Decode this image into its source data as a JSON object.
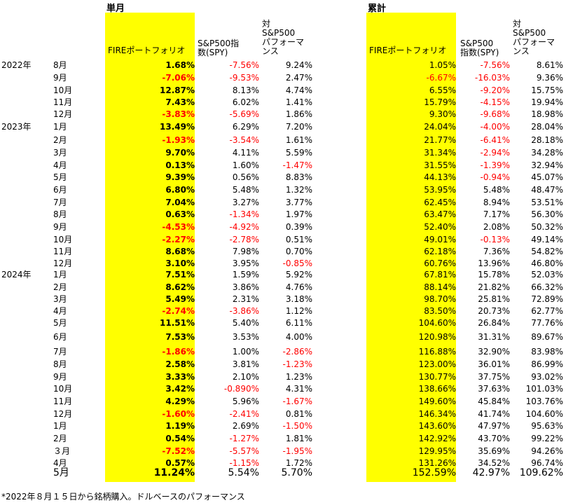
{
  "sections": {
    "monthly_title": "単月",
    "cumulative_title": "累計"
  },
  "headers": {
    "fire": "FIREポートフォリオ",
    "sp500_a": "S&P500指",
    "sp500_b": "数(SPY)",
    "sp500_cum_a": "S&P500",
    "sp500_cum_b": "指数(SPY)",
    "vs_a": "対",
    "vs_b": "S&P500",
    "vs_c": "パフォーマ",
    "vs_d": "ンス"
  },
  "rows": [
    {
      "year": "2022年",
      "month": "8月",
      "fire": "1.68%",
      "spy": "-7.56%",
      "vs": "9.24%",
      "cfire": "1.05%",
      "cspy": "-7.56%",
      "cvs": "8.61%"
    },
    {
      "year": "",
      "month": "9月",
      "fire": "-7.06%",
      "spy": "-9.53%",
      "vs": "2.47%",
      "cfire": "-6.67%",
      "cspy": "-16.03%",
      "cvs": "9.36%"
    },
    {
      "year": "",
      "month": "10月",
      "fire": "12.87%",
      "spy": "8.13%",
      "vs": "4.74%",
      "cfire": "6.55%",
      "cspy": "-9.20%",
      "cvs": "15.75%"
    },
    {
      "year": "",
      "month": "11月",
      "fire": "7.43%",
      "spy": "6.02%",
      "vs": "1.41%",
      "cfire": "15.79%",
      "cspy": "-4.15%",
      "cvs": "19.94%"
    },
    {
      "year": "",
      "month": "12月",
      "fire": "-3.83%",
      "spy": "-5.69%",
      "vs": "1.86%",
      "cfire": "9.30%",
      "cspy": "-9.68%",
      "cvs": "18.98%"
    },
    {
      "year": "2023年",
      "month": "1月",
      "fire": "13.49%",
      "spy": "6.29%",
      "vs": "7.20%",
      "cfire": "24.04%",
      "cspy": "-4.00%",
      "cvs": "28.04%"
    },
    {
      "year": "",
      "month": "2月",
      "fire": "-1.93%",
      "spy": "-3.54%",
      "vs": "1.61%",
      "cfire": "21.77%",
      "cspy": "-6.41%",
      "cvs": "28.18%"
    },
    {
      "year": "",
      "month": "3月",
      "fire": "9.70%",
      "spy": "4.11%",
      "vs": "5.59%",
      "cfire": "31.34%",
      "cspy": "-2.94%",
      "cvs": "34.28%"
    },
    {
      "year": "",
      "month": "4月",
      "fire": "0.13%",
      "spy": "1.60%",
      "vs": "-1.47%",
      "cfire": "31.55%",
      "cspy": "-1.39%",
      "cvs": "32.94%"
    },
    {
      "year": "",
      "month": "5月",
      "fire": "9.39%",
      "spy": "0.56%",
      "vs": "8.83%",
      "cfire": "44.13%",
      "cspy": "-0.94%",
      "cvs": "45.07%"
    },
    {
      "year": "",
      "month": "6月",
      "fire": "6.80%",
      "spy": "5.48%",
      "vs": "1.32%",
      "cfire": "53.95%",
      "cspy": "5.48%",
      "cvs": "48.47%"
    },
    {
      "year": "",
      "month": "7月",
      "fire": "7.04%",
      "spy": "3.27%",
      "vs": "3.77%",
      "cfire": "62.45%",
      "cspy": "8.94%",
      "cvs": "53.51%"
    },
    {
      "year": "",
      "month": "8月",
      "fire": "0.63%",
      "spy": "-1.34%",
      "vs": "1.97%",
      "cfire": "63.47%",
      "cspy": "7.17%",
      "cvs": "56.30%"
    },
    {
      "year": "",
      "month": "9月",
      "fire": "-4.53%",
      "spy": "-4.92%",
      "vs": "0.39%",
      "cfire": "52.40%",
      "cspy": "2.08%",
      "cvs": "50.32%"
    },
    {
      "year": "",
      "month": "10月",
      "fire": "-2.27%",
      "spy": "-2.78%",
      "vs": "0.51%",
      "cfire": "49.01%",
      "cspy": "-0.13%",
      "cvs": "49.14%"
    },
    {
      "year": "",
      "month": "11月",
      "fire": "8.68%",
      "spy": "7.98%",
      "vs": "0.70%",
      "cfire": "62.18%",
      "cspy": "7.36%",
      "cvs": "54.82%"
    },
    {
      "year": "",
      "month": "12月",
      "fire": "3.10%",
      "spy": "3.95%",
      "vs": "-0.85%",
      "cfire": "60.76%",
      "cspy": "13.96%",
      "cvs": "46.80%"
    },
    {
      "year": "2024年",
      "month": "1月",
      "fire": "7.51%",
      "spy": "1.59%",
      "vs": "5.92%",
      "cfire": "67.81%",
      "cspy": "15.78%",
      "cvs": "52.03%"
    },
    {
      "year": "",
      "month": "2月",
      "fire": "8.62%",
      "spy": "3.86%",
      "vs": "4.76%",
      "cfire": "88.14%",
      "cspy": "21.82%",
      "cvs": "66.32%"
    },
    {
      "year": "",
      "month": "3月",
      "fire": "5.49%",
      "spy": "2.31%",
      "vs": "3.18%",
      "cfire": "98.70%",
      "cspy": "25.81%",
      "cvs": "72.89%"
    },
    {
      "year": "",
      "month": "4月",
      "fire": "-2.74%",
      "spy": "-3.86%",
      "vs": "1.12%",
      "cfire": "83.50%",
      "cspy": "20.73%",
      "cvs": "62.77%"
    },
    {
      "year": "",
      "month": "5月",
      "fire": "11.51%",
      "spy": "5.40%",
      "vs": "6.11%",
      "cfire": "104.60%",
      "cspy": "26.84%",
      "cvs": "77.76%"
    },
    {
      "year": "",
      "month": "6月",
      "fire": "7.53%",
      "spy": "3.53%",
      "vs": "4.00%",
      "cfire": "120.98%",
      "cspy": "31.31%",
      "cvs": "89.67%"
    },
    {
      "year": "",
      "month": "7月",
      "fire": "-1.86%",
      "spy": "1.00%",
      "vs": "-2.86%",
      "cfire": "116.88%",
      "cspy": "32.90%",
      "cvs": "83.98%"
    },
    {
      "year": "",
      "month": "8月",
      "fire": "2.58%",
      "spy": "3.81%",
      "vs": "-1.23%",
      "cfire": "123.00%",
      "cspy": "36.01%",
      "cvs": "86.99%"
    },
    {
      "year": "",
      "month": "9月",
      "fire": "3.33%",
      "spy": "2.10%",
      "vs": "1.23%",
      "cfire": "130.77%",
      "cspy": "37.75%",
      "cvs": "93.02%"
    },
    {
      "year": "",
      "month": "10月",
      "fire": "3.42%",
      "spy": "-0.890%",
      "vs": "4.31%",
      "cfire": "138.66%",
      "cspy": "37.63%",
      "cvs": "101.03%"
    },
    {
      "year": "",
      "month": "11月",
      "fire": "4.29%",
      "spy": "5.96%",
      "vs": "-1.67%",
      "cfire": "149.60%",
      "cspy": "45.84%",
      "cvs": "103.76%"
    },
    {
      "year": "",
      "month": "12月",
      "fire": "-1.60%",
      "spy": "-2.41%",
      "vs": "0.81%",
      "cfire": "146.34%",
      "cspy": "41.74%",
      "cvs": "104.60%"
    },
    {
      "year": "",
      "month": "1月",
      "fire": "1.19%",
      "spy": "2.69%",
      "vs": "-1.50%",
      "cfire": "143.60%",
      "cspy": "47.97%",
      "cvs": "95.63%"
    },
    {
      "year": "",
      "month": "2月",
      "fire": "0.54%",
      "spy": "-1.27%",
      "vs": "1.81%",
      "cfire": "142.92%",
      "cspy": "43.70%",
      "cvs": "99.22%"
    },
    {
      "year": "",
      "month": "３月",
      "fire": "-7.52%",
      "spy": "-5.57%",
      "vs": "-1.95%",
      "cfire": "129.95%",
      "cspy": "35.69%",
      "cvs": "94.26%"
    },
    {
      "year": "",
      "month": "4月",
      "fire": "0.57%",
      "spy": "-1.15%",
      "vs": "1.72%",
      "cfire": "131.26%",
      "cspy": "34.52%",
      "cvs": "96.74%"
    },
    {
      "year": "",
      "month": "5月",
      "fire": "11.24%",
      "spy": "5.54%",
      "vs": "5.70%",
      "cfire": "152.59%",
      "cspy": "42.97%",
      "cvs": "109.62%"
    }
  ],
  "footnote": "*2022年８月１５日から銘柄購入。ドルベースのパフォーマンス"
}
